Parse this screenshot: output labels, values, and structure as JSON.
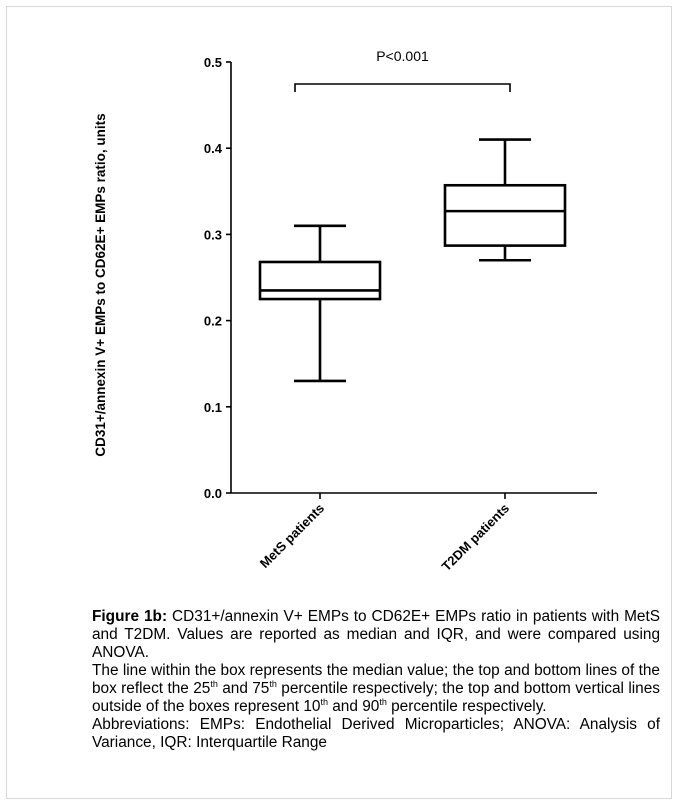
{
  "chart_data": {
    "type": "box",
    "title": "",
    "ylabel": "CD31+/annexin V+ EMPs to CD62E+ EMPs ratio, units",
    "xlabel": "",
    "ylim": [
      0.0,
      0.5
    ],
    "yticks": [
      "0.0",
      "0.1",
      "0.2",
      "0.3",
      "0.4",
      "0.5"
    ],
    "categories": [
      "MetS patients",
      "T2DM patients"
    ],
    "series": [
      {
        "category": "MetS patients",
        "whisker_low": 0.13,
        "q1": 0.225,
        "median": 0.235,
        "q3": 0.268,
        "whisker_high": 0.31
      },
      {
        "category": "T2DM patients",
        "whisker_low": 0.27,
        "q1": 0.287,
        "median": 0.327,
        "q3": 0.357,
        "whisker_high": 0.41
      }
    ],
    "annotation": {
      "text": "P<0.001",
      "from": "MetS patients",
      "to": "T2DM patients"
    },
    "grid": false
  },
  "caption": {
    "label": "Figure 1b:",
    "text": "CD31+/annexin V+ EMPs to CD62E+ EMPs ratio in patients with MetS and T2DM. Values are reported as median and IQR, and were compared using ANOVA.",
    "line2_a": "The line within the box represents the median value; the top and bottom lines of the box reflect the 25",
    "sup1": "th",
    "line2_b": " and 75",
    "sup2": "th",
    "line2_c": " percentile respectively; the top and bottom vertical lines outside of the boxes represent 10",
    "sup3": "th",
    "line2_d": " and 90",
    "sup4": "th",
    "line2_e": " percentile respectively.",
    "abbreviations": "Abbreviations: EMPs: Endothelial Derived Microparticles; ANOVA: Analysis of Variance, IQR: Interquartile Range"
  }
}
